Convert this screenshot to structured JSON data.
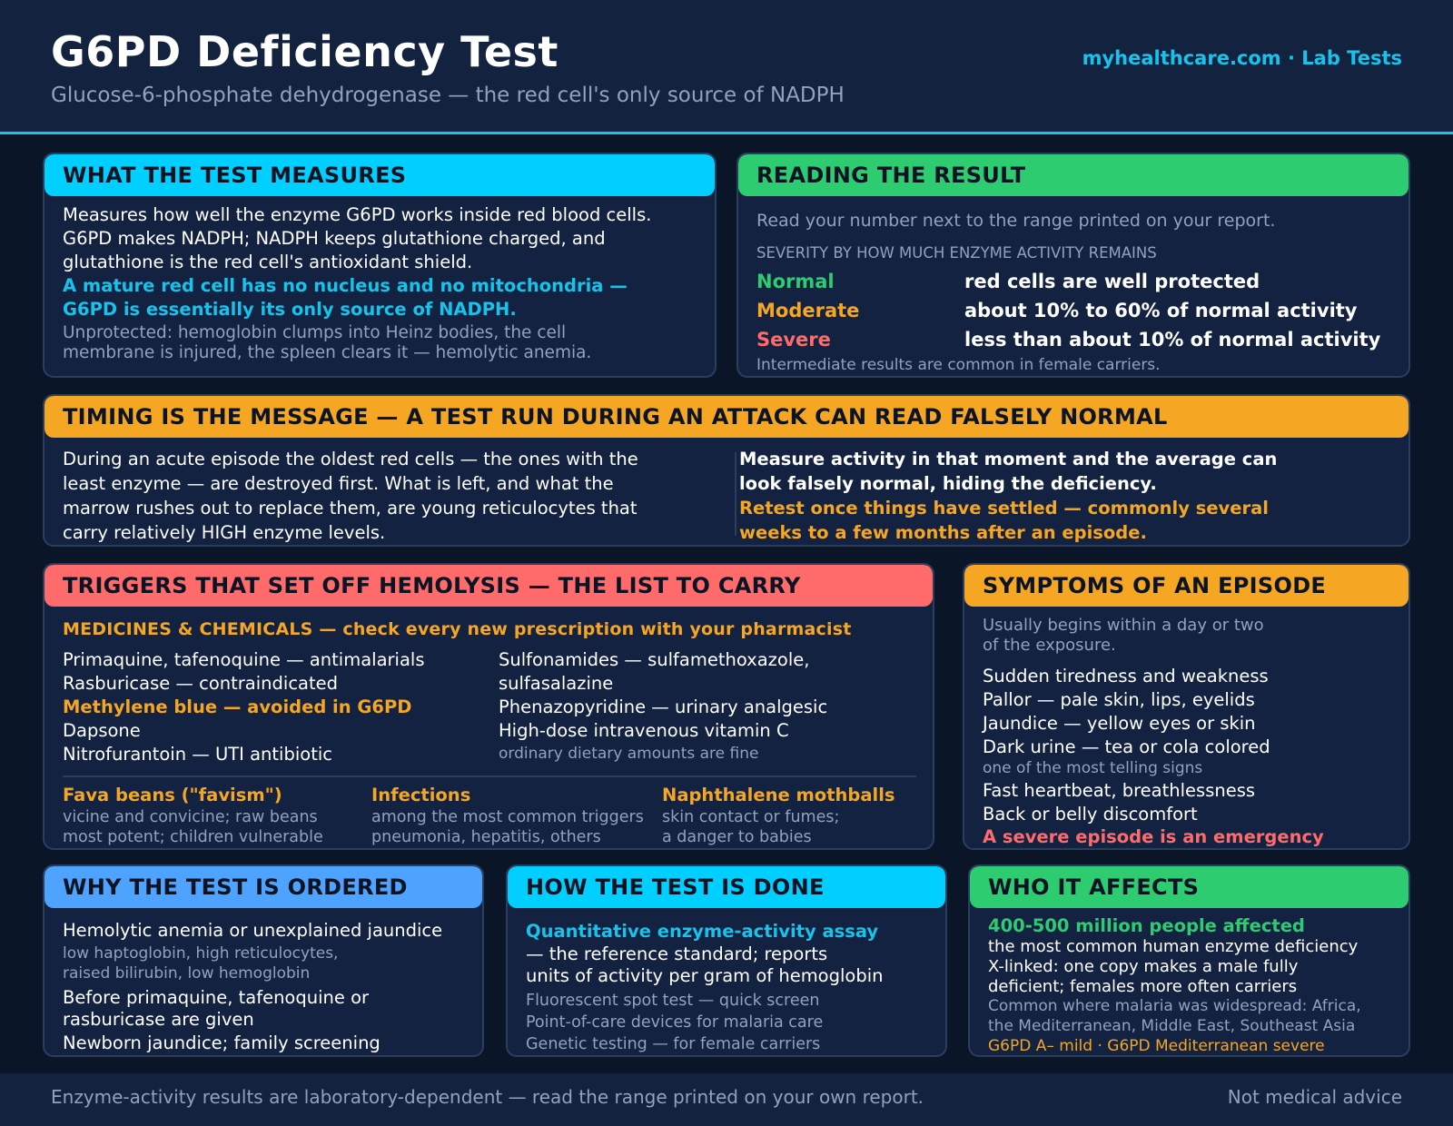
{
  "header": {
    "title": "G6PD Deficiency Test",
    "subtitle": "Glucose-6-phosphate dehydrogenase — the red cell's only source of NADPH",
    "site": "myhealthcare.com · Lab Tests"
  },
  "measures": {
    "heading": "WHAT THE TEST MEASURES",
    "p1": "Measures how well the enzyme G6PD works inside red blood cells. G6PD makes NADPH; NADPH keeps glutathione charged, and glutathione is the red cell's antioxidant shield.",
    "highlight": "A mature red cell has no nucleus and no mitochondria — G6PD is essentially its only source of NADPH.",
    "note": "Unprotected: hemoglobin clumps into Heinz bodies, the cell membrane is injured, the spleen clears it — hemolytic anemia."
  },
  "result": {
    "heading": "READING THE RESULT",
    "intro": "Read your number next to the range printed on your report.",
    "severity_label": "SEVERITY BY HOW MUCH ENZYME ACTIVITY REMAINS",
    "rows": [
      {
        "level": "Normal",
        "desc": "red cells are well protected"
      },
      {
        "level": "Moderate",
        "desc": "about 10% to 60% of normal activity"
      },
      {
        "level": "Severe",
        "desc": "less than about 10% of normal activity"
      }
    ],
    "note": "Intermediate results are common in female carriers."
  },
  "timing": {
    "heading": "TIMING IS THE MESSAGE — A TEST RUN DURING AN ATTACK CAN READ FALSELY NORMAL",
    "left": "During an acute episode the oldest red cells — the ones with the least enzyme — are destroyed first. What is left, and what the marrow rushes out to replace them, are young reticulocytes that carry relatively HIGH enzyme levels.",
    "right_bold": "Measure activity in that moment and the average can look falsely normal, hiding the deficiency.",
    "right_orange": "Retest once things have settled — commonly several weeks to a few months after an episode."
  },
  "triggers": {
    "heading": "TRIGGERS THAT SET OFF HEMOLYSIS — THE LIST TO CARRY",
    "meds_label": "MEDICINES & CHEMICALS — check every new prescription with your pharmacist",
    "col1": [
      "Primaquine, tafenoquine — antimalarials",
      "Rasburicase — contraindicated",
      "Methylene blue — avoided in G6PD",
      "Dapsone",
      "Nitrofurantoin — UTI antibiotic"
    ],
    "col2": [
      "Sulfonamides — sulfamethoxazole,",
      "sulfasalazine",
      "Phenazopyridine — urinary analgesic",
      "High-dose intravenous vitamin C",
      "ordinary dietary amounts are fine"
    ],
    "others": [
      {
        "title": "Fava beans (\"favism\")",
        "l1": "vicine and convicine; raw beans",
        "l2": "most potent; children vulnerable"
      },
      {
        "title": "Infections",
        "l1": "among the most common triggers",
        "l2": "pneumonia, hepatitis, others"
      },
      {
        "title": "Naphthalene mothballs",
        "l1": "skin contact or fumes;",
        "l2": "a danger to babies"
      }
    ]
  },
  "symptoms": {
    "heading": "SYMPTOMS OF AN EPISODE",
    "intro1": "Usually begins within a day or two",
    "intro2": "of the exposure.",
    "items": [
      "Sudden tiredness and weakness",
      "Pallor — pale skin, lips, eyelids",
      "Jaundice — yellow eyes or skin",
      "Dark urine — tea or cola colored"
    ],
    "urine_note": "one of the most telling signs",
    "items2": [
      "Fast heartbeat, breathlessness",
      "Back or belly discomfort"
    ],
    "emergency": "A severe episode is an emergency"
  },
  "why": {
    "heading": "WHY THE TEST IS ORDERED",
    "i1": "Hemolytic anemia or unexplained jaundice",
    "i1_note1": "low haptoglobin, high reticulocytes,",
    "i1_note2": "raised bilirubin, low hemoglobin",
    "i2a": "Before primaquine, tafenoquine or",
    "i2b": "rasburicase are given",
    "i3": "Newborn jaundice; family screening"
  },
  "how": {
    "heading": "HOW THE TEST IS DONE",
    "assay": "Quantitative enzyme-activity assay",
    "d1": "— the reference standard; reports",
    "d2": "units of activity per gram of hemoglobin",
    "m1": "Fluorescent spot test — quick screen",
    "m2": "Point-of-care devices for malaria care",
    "m3": "Genetic testing — for female carriers"
  },
  "who": {
    "heading": "WHO IT AFFECTS",
    "count": "400-500 million people affected",
    "l1": "the most common human enzyme deficiency",
    "l2": "X-linked: one copy makes a male fully",
    "l3": "deficient; females more often carriers",
    "m1": "Common where malaria was widespread: Africa,",
    "m2": "the Mediterranean, Middle East, Southeast Asia",
    "variants": "G6PD A– mild · G6PD Mediterranean severe"
  },
  "footer": {
    "left": "Enzyme-activity results are laboratory-dependent — read the range printed on your own report.",
    "right": "Not medical advice"
  }
}
